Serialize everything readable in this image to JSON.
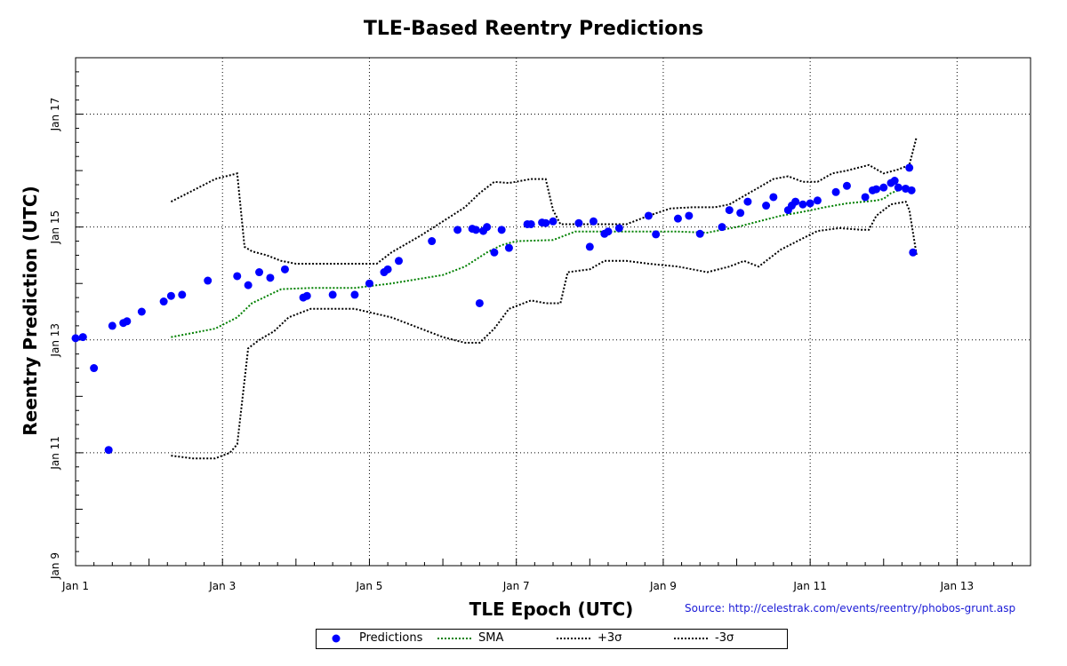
{
  "chart_data": {
    "type": "scatter",
    "title": "TLE-Based Reentry Predictions",
    "xlabel": "TLE Epoch (UTC)",
    "ylabel": "Reentry Prediction (UTC)",
    "source": "Source: http://celestrak.com/events/reentry/phobos-grunt.asp",
    "xlim": [
      1,
      14
    ],
    "ylim": [
      9,
      18
    ],
    "x_ticks": [
      1,
      3,
      5,
      7,
      9,
      11,
      13
    ],
    "x_tick_labels": [
      "Jan 1",
      "Jan 3",
      "Jan 5",
      "Jan 7",
      "Jan 9",
      "Jan 11",
      "Jan 13"
    ],
    "y_ticks": [
      9,
      11,
      13,
      15,
      17
    ],
    "y_tick_labels": [
      "Jan 9",
      "Jan 11",
      "Jan 13",
      "Jan 15",
      "Jan 17"
    ],
    "grid": true,
    "legend": {
      "position": "bottom",
      "entries": [
        "Predictions",
        "SMA",
        "+3σ",
        "-3σ"
      ]
    },
    "series": [
      {
        "name": "Predictions",
        "kind": "points",
        "color": "#0000ff",
        "x": [
          1.0,
          1.1,
          1.25,
          1.45,
          1.5,
          1.65,
          1.7,
          1.9,
          2.2,
          2.3,
          2.45,
          2.8,
          3.2,
          3.35,
          3.5,
          3.65,
          3.85,
          4.1,
          4.15,
          4.5,
          4.8,
          5.0,
          5.2,
          5.25,
          5.4,
          5.85,
          6.2,
          6.4,
          6.45,
          6.5,
          6.55,
          6.6,
          6.7,
          6.8,
          6.9,
          7.15,
          7.2,
          7.35,
          7.4,
          7.5,
          7.85,
          8.0,
          8.05,
          8.2,
          8.25,
          8.4,
          8.8,
          8.9,
          9.2,
          9.35,
          9.5,
          9.8,
          9.9,
          10.05,
          10.15,
          10.4,
          10.5,
          10.7,
          10.75,
          10.8,
          10.9,
          11.0,
          11.1,
          11.35,
          11.5,
          11.75,
          11.85,
          11.9,
          12.0,
          12.1,
          12.15,
          12.2,
          12.3,
          12.35,
          12.38,
          12.4
        ],
        "y": [
          13.03,
          13.05,
          12.5,
          11.05,
          13.25,
          13.3,
          13.33,
          13.5,
          13.68,
          13.78,
          13.8,
          14.05,
          14.13,
          13.97,
          14.2,
          14.1,
          14.25,
          13.75,
          13.78,
          13.8,
          13.8,
          14.0,
          14.2,
          14.25,
          14.4,
          14.75,
          14.95,
          14.97,
          14.95,
          13.65,
          14.93,
          15.0,
          14.55,
          14.95,
          14.63,
          15.05,
          15.05,
          15.08,
          15.07,
          15.1,
          15.07,
          14.65,
          15.1,
          14.88,
          14.92,
          14.98,
          15.2,
          14.87,
          15.15,
          15.2,
          14.88,
          15.0,
          15.3,
          15.25,
          15.45,
          15.38,
          15.53,
          15.3,
          15.38,
          15.45,
          15.4,
          15.42,
          15.47,
          15.62,
          15.73,
          15.53,
          15.65,
          15.67,
          15.7,
          15.78,
          15.82,
          15.7,
          15.68,
          16.05,
          15.65,
          14.55
        ]
      },
      {
        "name": "SMA",
        "kind": "line",
        "style": "dotted",
        "color": "#008000",
        "x": [
          2.3,
          2.9,
          3.2,
          3.4,
          3.8,
          4.2,
          4.8,
          5.3,
          6.0,
          6.3,
          6.6,
          6.8,
          7.0,
          7.5,
          7.8,
          8.2,
          8.8,
          9.2,
          9.6,
          9.8,
          10.0,
          10.3,
          10.6,
          10.9,
          11.2,
          11.5,
          11.9,
          12.0,
          12.1,
          12.3,
          12.45
        ],
        "y": [
          13.05,
          13.2,
          13.4,
          13.65,
          13.9,
          13.92,
          13.92,
          14.0,
          14.15,
          14.3,
          14.55,
          14.68,
          14.75,
          14.77,
          14.92,
          14.92,
          14.92,
          14.92,
          14.9,
          14.95,
          15.0,
          15.1,
          15.2,
          15.27,
          15.35,
          15.42,
          15.47,
          15.5,
          15.6,
          15.7,
          15.65
        ]
      },
      {
        "name": "+3σ",
        "kind": "line",
        "style": "dotted",
        "color": "#000000",
        "x": [
          2.3,
          2.6,
          2.9,
          3.2,
          3.3,
          3.4,
          3.6,
          3.8,
          4.0,
          4.4,
          4.8,
          5.1,
          5.3,
          5.7,
          6.0,
          6.3,
          6.5,
          6.7,
          6.9,
          7.2,
          7.4,
          7.5,
          7.6,
          8.0,
          8.2,
          8.5,
          8.8,
          9.1,
          9.4,
          9.7,
          9.9,
          10.1,
          10.3,
          10.5,
          10.7,
          10.9,
          11.1,
          11.3,
          11.5,
          11.8,
          12.0,
          12.2,
          12.35,
          12.45
        ],
        "y": [
          15.45,
          15.65,
          15.85,
          15.95,
          14.65,
          14.57,
          14.5,
          14.4,
          14.35,
          14.35,
          14.35,
          14.35,
          14.55,
          14.85,
          15.1,
          15.35,
          15.6,
          15.8,
          15.78,
          15.85,
          15.85,
          15.3,
          15.05,
          15.05,
          15.05,
          15.05,
          15.2,
          15.33,
          15.35,
          15.35,
          15.4,
          15.55,
          15.7,
          15.85,
          15.9,
          15.8,
          15.8,
          15.95,
          16.0,
          16.1,
          15.95,
          16.02,
          16.1,
          16.6
        ]
      },
      {
        "name": "-3σ",
        "kind": "line",
        "style": "dotted",
        "color": "#000000",
        "x": [
          2.3,
          2.6,
          2.9,
          3.1,
          3.2,
          3.35,
          3.5,
          3.7,
          3.9,
          4.2,
          4.8,
          5.3,
          6.0,
          6.3,
          6.5,
          6.7,
          6.9,
          7.2,
          7.4,
          7.6,
          7.7,
          8.0,
          8.2,
          8.5,
          8.8,
          9.2,
          9.6,
          9.9,
          10.1,
          10.3,
          10.6,
          10.9,
          11.1,
          11.4,
          11.7,
          11.8,
          11.9,
          12.1,
          12.3,
          12.35,
          12.45
        ],
        "y": [
          10.95,
          10.9,
          10.9,
          11.0,
          11.15,
          12.85,
          13.0,
          13.15,
          13.4,
          13.55,
          13.55,
          13.4,
          13.05,
          12.95,
          12.95,
          13.2,
          13.55,
          13.7,
          13.65,
          13.65,
          14.2,
          14.25,
          14.4,
          14.4,
          14.35,
          14.3,
          14.2,
          14.3,
          14.4,
          14.3,
          14.6,
          14.8,
          14.93,
          14.98,
          14.95,
          14.95,
          15.2,
          15.4,
          15.45,
          15.3,
          14.5
        ]
      }
    ]
  }
}
